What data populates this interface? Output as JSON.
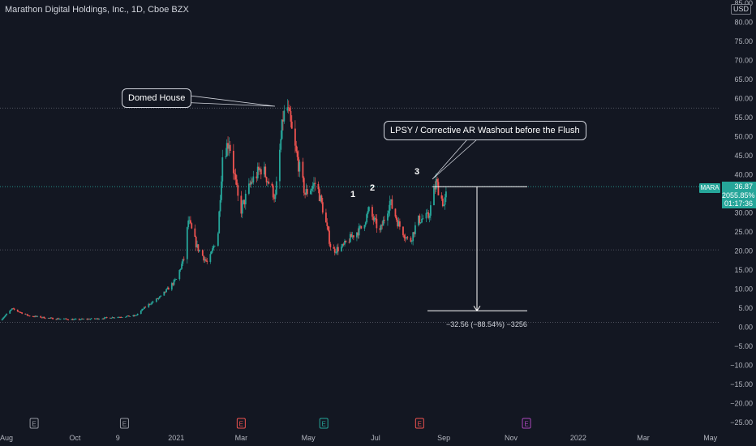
{
  "header": {
    "title": "Marathon Digital Holdings, Inc., 1D, Cboe BZX",
    "currency": "USD"
  },
  "annotations": {
    "domed_house": "Domed House",
    "lpsy": "LPSY / Corrective AR Washout before the Flush",
    "wave1": "1",
    "wave2": "2",
    "wave3": "3",
    "measure": "−32.56 (−88.54%) −3256"
  },
  "last_price": {
    "symbol": "MARA",
    "price": "36.87",
    "change": "2055.85%",
    "countdown": "01:17:36"
  },
  "colors": {
    "background": "#131722",
    "up": "#26a69a",
    "down": "#ef5350",
    "text": "#d1d4dc"
  },
  "chart_data": {
    "type": "candlestick",
    "symbol": "MARA",
    "y_axis": {
      "side": "right",
      "range": [
        -26,
        85
      ],
      "ticks": [
        "85.00",
        "80.00",
        "75.00",
        "70.00",
        "65.00",
        "60.00",
        "55.00",
        "50.00",
        "45.00",
        "40.00",
        "35.00",
        "30.00",
        "25.00",
        "20.00",
        "15.00",
        "10.00",
        "5.00",
        "0.00",
        "−5.00",
        "−10.00",
        "−15.00",
        "−20.00",
        "−25.00"
      ]
    },
    "x_axis": {
      "ticks": [
        "Aug",
        "Oct",
        "9",
        "2021",
        "Mar",
        "May",
        "Jul",
        "Sep",
        "Nov",
        "2022",
        "Mar",
        "May"
      ],
      "range": [
        "2020-07-25",
        "2022-05-10"
      ]
    },
    "earnings_markers": [
      {
        "date": "2020-08-25",
        "label": "E",
        "color": "#9598a1"
      },
      {
        "date": "2020-11-15",
        "label": "E",
        "color": "#9598a1"
      },
      {
        "date": "2021-03-01",
        "label": "E",
        "color": "#ef5350"
      },
      {
        "date": "2021-05-15",
        "label": "E",
        "color": "#26a69a"
      },
      {
        "date": "2021-08-10",
        "label": "E",
        "color": "#ef5350"
      },
      {
        "date": "2021-11-15",
        "label": "E",
        "color": "#ab47bc"
      }
    ],
    "horizontal_levels": [
      57.5,
      36.87,
      20.3,
      1.3
    ],
    "path_points": [
      [
        "2020-07-25",
        1.8
      ],
      [
        "2020-08-05",
        4.8
      ],
      [
        "2020-08-20",
        3.0
      ],
      [
        "2020-09-10",
        2.3
      ],
      [
        "2020-10-01",
        2.0
      ],
      [
        "2020-10-20",
        2.2
      ],
      [
        "2020-11-05",
        2.6
      ],
      [
        "2020-11-25",
        3.0
      ],
      [
        "2020-12-05",
        5.6
      ],
      [
        "2020-12-18",
        8.0
      ],
      [
        "2021-01-01",
        12.5
      ],
      [
        "2021-01-08",
        18.0
      ],
      [
        "2021-01-12",
        28.0
      ],
      [
        "2021-01-20",
        21.0
      ],
      [
        "2021-01-30",
        16.5
      ],
      [
        "2021-02-08",
        25.0
      ],
      [
        "2021-02-12",
        45.0
      ],
      [
        "2021-02-18",
        49.0
      ],
      [
        "2021-02-28",
        30.0
      ],
      [
        "2021-03-10",
        38.0
      ],
      [
        "2021-03-20",
        42.0
      ],
      [
        "2021-04-01",
        34.0
      ],
      [
        "2021-04-08",
        55.0
      ],
      [
        "2021-04-12",
        57.5
      ],
      [
        "2021-04-18",
        48.0
      ],
      [
        "2021-04-28",
        35.0
      ],
      [
        "2021-05-08",
        38.0
      ],
      [
        "2021-05-15",
        30.0
      ],
      [
        "2021-05-22",
        20.0
      ],
      [
        "2021-06-01",
        21.0
      ],
      [
        "2021-06-10",
        24.0
      ],
      [
        "2021-06-18",
        26.0
      ],
      [
        "2021-06-25",
        30.5
      ],
      [
        "2021-07-05",
        25.0
      ],
      [
        "2021-07-14",
        33.0
      ],
      [
        "2021-07-22",
        27.0
      ],
      [
        "2021-08-01",
        22.0
      ],
      [
        "2021-08-08",
        28.0
      ],
      [
        "2021-08-18",
        29.0
      ],
      [
        "2021-08-25",
        38.0
      ],
      [
        "2021-09-01",
        32.0
      ],
      [
        "2021-09-05",
        36.87
      ]
    ],
    "measurement": {
      "from": 36.87,
      "to": 4.31,
      "change": -32.56,
      "percent": -88.54
    }
  }
}
